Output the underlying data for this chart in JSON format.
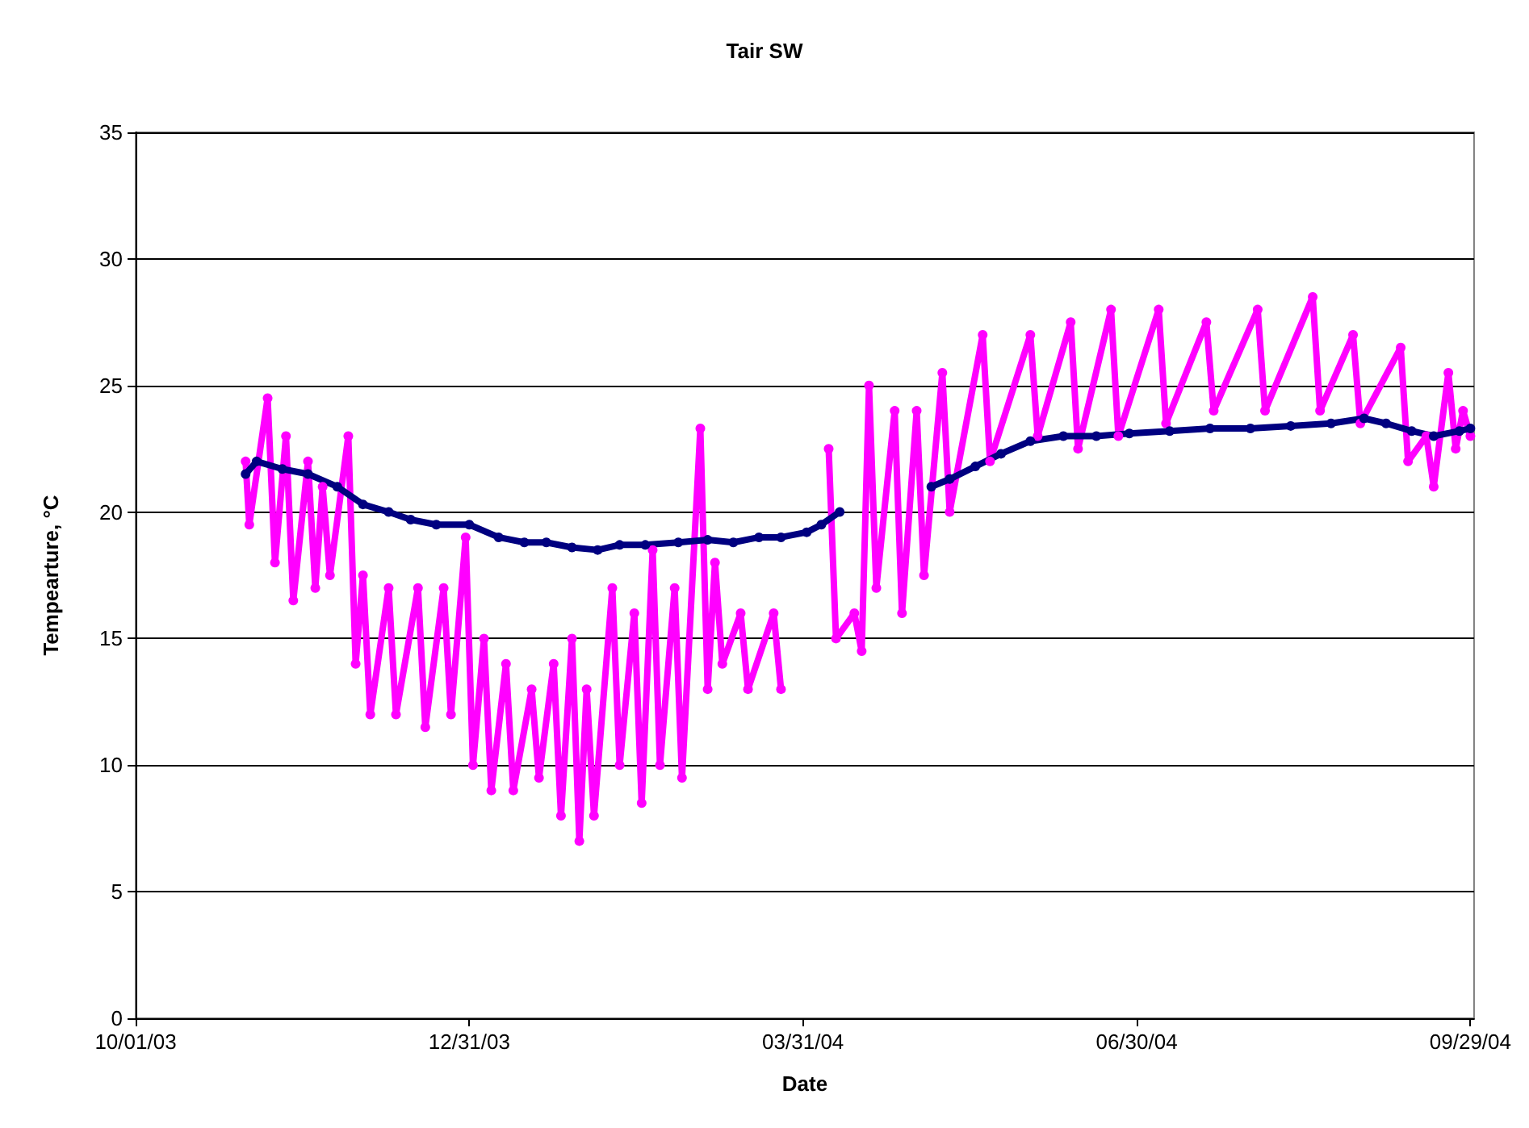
{
  "chart_data": {
    "type": "line",
    "title": "Tair SW",
    "xlabel": "Date",
    "ylabel": "Tempearture, °C",
    "xlim": [
      "2003-10-01",
      "2004-09-30"
    ],
    "xticks": [
      {
        "value": "2003-10-01",
        "label": "10/01/03"
      },
      {
        "value": "2003-12-31",
        "label": "12/31/03"
      },
      {
        "value": "2004-03-31",
        "label": "03/31/04"
      },
      {
        "value": "2004-06-30",
        "label": "06/30/04"
      },
      {
        "value": "2004-09-29",
        "label": "09/29/04"
      }
    ],
    "ylim": [
      0,
      35
    ],
    "yticks": [
      0,
      5,
      10,
      15,
      20,
      25,
      30,
      35
    ],
    "grid": "y",
    "marker": "circle",
    "line_style": "solid",
    "series": [
      {
        "color": "#ff00ff",
        "x": [
          "2003-10-31",
          "2003-11-01",
          "2003-11-06",
          "2003-11-08",
          "2003-11-11",
          "2003-11-13",
          "2003-11-17",
          "2003-11-19",
          "2003-11-21",
          "2003-11-23",
          "2003-11-28",
          "2003-11-30",
          "2003-12-02",
          "2003-12-04",
          "2003-12-09",
          "2003-12-11",
          "2003-12-17",
          "2003-12-19",
          "2003-12-24",
          "2003-12-26",
          "2003-12-30",
          "2004-01-01",
          "2004-01-04",
          "2004-01-06",
          "2004-01-10",
          "2004-01-12",
          "2004-01-17",
          "2004-01-19",
          "2004-01-23",
          "2004-01-25",
          "2004-01-28",
          "2004-01-30",
          "2004-02-01",
          "2004-02-03",
          "2004-02-08",
          "2004-02-10",
          "2004-02-14",
          "2004-02-16",
          "2004-02-19",
          "2004-02-21",
          "2004-02-25",
          "2004-02-27",
          "2004-03-03",
          "2004-03-05",
          "2004-03-07",
          "2004-03-09",
          "2004-03-14",
          "2004-03-16",
          "2004-03-23",
          "2004-03-25",
          "2004-03-31",
          "2004-04-07",
          "2004-04-09",
          "2004-04-14",
          "2004-04-16",
          "2004-04-18",
          "2004-04-20",
          "2004-04-25",
          "2004-04-27",
          "2004-05-01",
          "2004-05-03",
          "2004-05-08",
          "2004-05-10",
          "2004-05-19",
          "2004-05-21",
          "2004-06-01",
          "2004-06-03",
          "2004-06-12",
          "2004-06-14",
          "2004-06-23",
          "2004-06-25",
          "2004-07-06",
          "2004-07-08",
          "2004-07-19",
          "2004-07-21",
          "2004-08-02",
          "2004-08-04",
          "2004-08-17",
          "2004-08-19",
          "2004-08-28",
          "2004-08-30",
          "2004-09-10",
          "2004-09-12",
          "2004-09-17",
          "2004-09-19",
          "2004-09-23",
          "2004-09-25",
          "2004-09-27",
          "2004-09-29"
        ],
        "values": [
          22,
          19.5,
          24.5,
          18,
          23,
          16.5,
          22,
          17,
          21,
          17.5,
          23,
          14,
          17.5,
          12,
          17,
          12,
          17,
          11.5,
          17,
          12,
          19,
          10,
          15,
          9,
          14,
          9,
          13,
          9.5,
          14,
          8,
          15,
          7,
          13,
          8,
          17,
          10,
          16,
          8.5,
          18.5,
          10,
          17,
          9.5,
          23.3,
          13,
          18,
          14,
          16,
          13,
          16,
          13,
          null,
          22.5,
          15,
          16,
          14.5,
          25,
          17,
          24,
          16,
          24,
          17.5,
          25.5,
          20,
          27,
          22,
          27,
          23,
          27.5,
          22.5,
          28,
          23,
          28,
          23.5,
          27.5,
          24,
          28,
          24,
          28.5,
          24,
          27,
          23.5,
          26.5,
          22,
          23,
          21,
          25.5,
          22.5,
          24,
          23
        ]
      },
      {
        "color": "#000080",
        "x": [
          "2003-10-31",
          "2003-11-03",
          "2003-11-10",
          "2003-11-17",
          "2003-11-25",
          "2003-12-02",
          "2003-12-09",
          "2003-12-15",
          "2003-12-22",
          "2003-12-31",
          "2004-01-08",
          "2004-01-15",
          "2004-01-21",
          "2004-01-28",
          "2004-02-04",
          "2004-02-10",
          "2004-02-17",
          "2004-02-26",
          "2004-03-05",
          "2004-03-12",
          "2004-03-19",
          "2004-03-25",
          "2004-04-01",
          "2004-04-05",
          "2004-04-10",
          "2004-04-20",
          "2004-05-05",
          "2004-05-10",
          "2004-05-17",
          "2004-05-24",
          "2004-06-01",
          "2004-06-10",
          "2004-06-19",
          "2004-06-28",
          "2004-07-09",
          "2004-07-20",
          "2004-07-31",
          "2004-08-11",
          "2004-08-22",
          "2004-08-31",
          "2004-09-06",
          "2004-09-13",
          "2004-09-19",
          "2004-09-26",
          "2004-09-29"
        ],
        "values": [
          21.5,
          22,
          21.7,
          21.5,
          21,
          20.3,
          20,
          19.7,
          19.5,
          19.5,
          19,
          18.8,
          18.8,
          18.6,
          18.5,
          18.7,
          18.7,
          18.8,
          18.9,
          18.8,
          19,
          19,
          19.2,
          19.5,
          20,
          null,
          21,
          21.3,
          21.8,
          22.3,
          22.8,
          23,
          23,
          23.1,
          23.2,
          23.3,
          23.3,
          23.4,
          23.5,
          23.7,
          23.5,
          23.2,
          23,
          23.2,
          23.3
        ]
      }
    ]
  }
}
